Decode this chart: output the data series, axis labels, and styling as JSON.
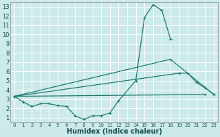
{
  "xlabel": "Humidex (Indice chaleur)",
  "xlim": [
    -0.5,
    23.5
  ],
  "ylim": [
    0.5,
    13.5
  ],
  "yticks": [
    1,
    2,
    3,
    4,
    5,
    6,
    7,
    8,
    9,
    10,
    11,
    12,
    13
  ],
  "xticks": [
    0,
    1,
    2,
    3,
    4,
    5,
    6,
    7,
    8,
    9,
    10,
    11,
    12,
    13,
    14,
    15,
    16,
    17,
    18,
    19,
    20,
    21,
    22,
    23
  ],
  "background_color": "#cceaea",
  "grid_color": "#b0d8d8",
  "line_color": "#1a7a6e",
  "lines": [
    {
      "x": [
        0,
        1,
        2,
        3,
        4,
        5,
        6,
        7,
        8,
        9,
        10,
        11,
        12,
        14,
        15,
        16,
        17,
        18
      ],
      "y": [
        3.3,
        2.7,
        2.2,
        2.5,
        2.5,
        2.3,
        2.2,
        1.2,
        0.8,
        1.2,
        1.2,
        1.5,
        2.8,
        5.0,
        11.8,
        13.2,
        12.6,
        9.5
      ]
    },
    {
      "x": [
        0,
        22
      ],
      "y": [
        3.3,
        3.5
      ]
    },
    {
      "x": [
        0,
        18,
        23
      ],
      "y": [
        3.3,
        7.3,
        3.5
      ]
    },
    {
      "x": [
        0,
        19,
        20,
        21,
        22,
        23
      ],
      "y": [
        3.3,
        5.8,
        5.8,
        4.8,
        4.2,
        3.5
      ]
    }
  ]
}
